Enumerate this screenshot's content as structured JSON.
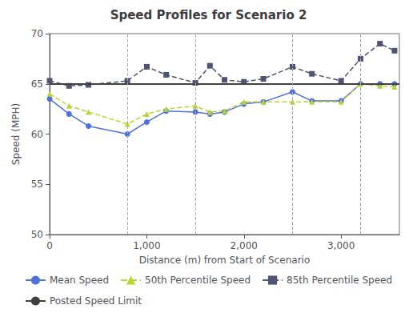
{
  "chart_data": {
    "type": "line",
    "title": "Speed Profiles for Scenario 2",
    "xlabel": "Distance (m) from Start of Scenario",
    "ylabel": "Speed (MPH)",
    "xlim": [
      0,
      3600
    ],
    "ylim": [
      50,
      70
    ],
    "xticks": [
      0,
      1000,
      2000,
      3000
    ],
    "yticks": [
      50,
      55,
      60,
      65,
      70
    ],
    "grid": false,
    "legend": "bottom",
    "series": [
      {
        "name": "Mean Speed",
        "type": "line",
        "marker": "circle",
        "line_style": "solid",
        "x": [
          0,
          200,
          400,
          800,
          1000,
          1200,
          1500,
          1650,
          1800,
          2000,
          2200,
          2500,
          2700,
          3000,
          3200,
          3400,
          3550
        ],
        "values": [
          63.5,
          62.0,
          60.8,
          60.0,
          61.2,
          62.3,
          62.2,
          62.0,
          62.2,
          63.0,
          63.2,
          64.2,
          63.3,
          63.3,
          65.0,
          65.0,
          65.0
        ]
      },
      {
        "name": "50th Percentile Speed",
        "type": "line",
        "marker": "triangle",
        "line_style": "dashed",
        "x": [
          0,
          200,
          400,
          800,
          1000,
          1200,
          1500,
          1650,
          1800,
          2000,
          2200,
          2500,
          2700,
          3000,
          3200,
          3400,
          3550
        ],
        "values": [
          64.0,
          62.8,
          62.2,
          61.0,
          62.0,
          62.5,
          62.8,
          62.2,
          62.3,
          63.2,
          63.2,
          63.2,
          63.2,
          63.2,
          65.0,
          64.8,
          64.7
        ]
      },
      {
        "name": "85th Percentile Speed",
        "type": "line",
        "marker": "square",
        "line_style": "dashed",
        "x": [
          0,
          200,
          400,
          800,
          1000,
          1200,
          1500,
          1650,
          1800,
          2000,
          2200,
          2500,
          2700,
          3000,
          3200,
          3400,
          3550
        ],
        "values": [
          65.3,
          64.8,
          64.9,
          65.3,
          66.7,
          65.9,
          65.1,
          66.8,
          65.4,
          65.2,
          65.5,
          66.7,
          66.0,
          65.3,
          67.5,
          69.0,
          68.3
        ]
      },
      {
        "name": "Posted Speed Limit",
        "type": "hline",
        "color": "#404040",
        "line_style": "solid",
        "values": [
          65
        ]
      },
      {
        "type": "vline",
        "color": "#AAAAAA",
        "line_style": "dashed",
        "x": [
          800,
          1500,
          2500,
          3200
        ]
      }
    ]
  }
}
